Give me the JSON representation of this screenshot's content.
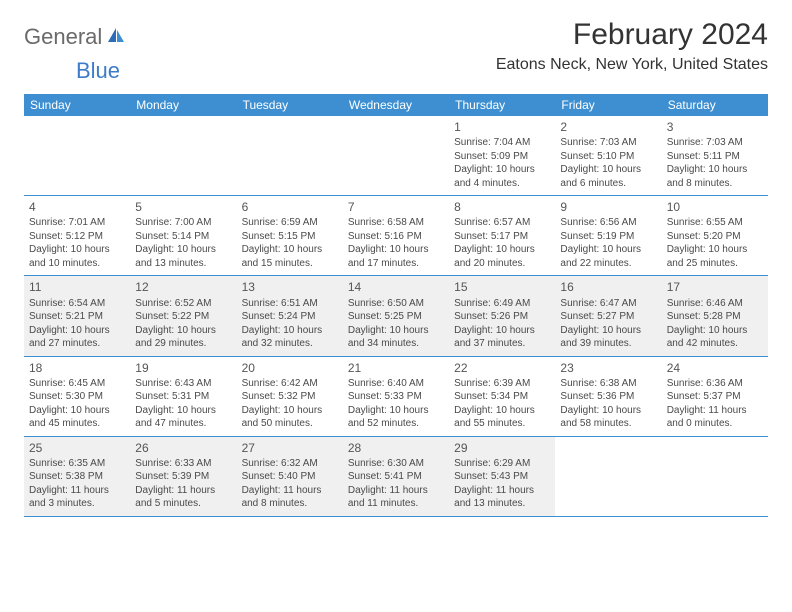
{
  "logo": {
    "text1": "General",
    "text2": "Blue"
  },
  "title": "February 2024",
  "location": "Eatons Neck, New York, United States",
  "colors": {
    "header_bg": "#3d8fd1",
    "header_text": "#ffffff",
    "border": "#3d8fd1",
    "shaded_bg": "#f0f0f0",
    "logo_gray": "#6a6a6a",
    "logo_blue": "#3d7cc9"
  },
  "dayNames": [
    "Sunday",
    "Monday",
    "Tuesday",
    "Wednesday",
    "Thursday",
    "Friday",
    "Saturday"
  ],
  "weeks": [
    [
      {
        "num": "",
        "lines": []
      },
      {
        "num": "",
        "lines": []
      },
      {
        "num": "",
        "lines": []
      },
      {
        "num": "",
        "lines": []
      },
      {
        "num": "1",
        "lines": [
          "Sunrise: 7:04 AM",
          "Sunset: 5:09 PM",
          "Daylight: 10 hours and 4 minutes."
        ]
      },
      {
        "num": "2",
        "lines": [
          "Sunrise: 7:03 AM",
          "Sunset: 5:10 PM",
          "Daylight: 10 hours and 6 minutes."
        ]
      },
      {
        "num": "3",
        "lines": [
          "Sunrise: 7:03 AM",
          "Sunset: 5:11 PM",
          "Daylight: 10 hours and 8 minutes."
        ]
      }
    ],
    [
      {
        "num": "4",
        "lines": [
          "Sunrise: 7:01 AM",
          "Sunset: 5:12 PM",
          "Daylight: 10 hours and 10 minutes."
        ]
      },
      {
        "num": "5",
        "lines": [
          "Sunrise: 7:00 AM",
          "Sunset: 5:14 PM",
          "Daylight: 10 hours and 13 minutes."
        ]
      },
      {
        "num": "6",
        "lines": [
          "Sunrise: 6:59 AM",
          "Sunset: 5:15 PM",
          "Daylight: 10 hours and 15 minutes."
        ]
      },
      {
        "num": "7",
        "lines": [
          "Sunrise: 6:58 AM",
          "Sunset: 5:16 PM",
          "Daylight: 10 hours and 17 minutes."
        ]
      },
      {
        "num": "8",
        "lines": [
          "Sunrise: 6:57 AM",
          "Sunset: 5:17 PM",
          "Daylight: 10 hours and 20 minutes."
        ]
      },
      {
        "num": "9",
        "lines": [
          "Sunrise: 6:56 AM",
          "Sunset: 5:19 PM",
          "Daylight: 10 hours and 22 minutes."
        ]
      },
      {
        "num": "10",
        "lines": [
          "Sunrise: 6:55 AM",
          "Sunset: 5:20 PM",
          "Daylight: 10 hours and 25 minutes."
        ]
      }
    ],
    [
      {
        "num": "11",
        "lines": [
          "Sunrise: 6:54 AM",
          "Sunset: 5:21 PM",
          "Daylight: 10 hours and 27 minutes."
        ]
      },
      {
        "num": "12",
        "lines": [
          "Sunrise: 6:52 AM",
          "Sunset: 5:22 PM",
          "Daylight: 10 hours and 29 minutes."
        ]
      },
      {
        "num": "13",
        "lines": [
          "Sunrise: 6:51 AM",
          "Sunset: 5:24 PM",
          "Daylight: 10 hours and 32 minutes."
        ]
      },
      {
        "num": "14",
        "lines": [
          "Sunrise: 6:50 AM",
          "Sunset: 5:25 PM",
          "Daylight: 10 hours and 34 minutes."
        ]
      },
      {
        "num": "15",
        "lines": [
          "Sunrise: 6:49 AM",
          "Sunset: 5:26 PM",
          "Daylight: 10 hours and 37 minutes."
        ]
      },
      {
        "num": "16",
        "lines": [
          "Sunrise: 6:47 AM",
          "Sunset: 5:27 PM",
          "Daylight: 10 hours and 39 minutes."
        ]
      },
      {
        "num": "17",
        "lines": [
          "Sunrise: 6:46 AM",
          "Sunset: 5:28 PM",
          "Daylight: 10 hours and 42 minutes."
        ]
      }
    ],
    [
      {
        "num": "18",
        "lines": [
          "Sunrise: 6:45 AM",
          "Sunset: 5:30 PM",
          "Daylight: 10 hours and 45 minutes."
        ]
      },
      {
        "num": "19",
        "lines": [
          "Sunrise: 6:43 AM",
          "Sunset: 5:31 PM",
          "Daylight: 10 hours and 47 minutes."
        ]
      },
      {
        "num": "20",
        "lines": [
          "Sunrise: 6:42 AM",
          "Sunset: 5:32 PM",
          "Daylight: 10 hours and 50 minutes."
        ]
      },
      {
        "num": "21",
        "lines": [
          "Sunrise: 6:40 AM",
          "Sunset: 5:33 PM",
          "Daylight: 10 hours and 52 minutes."
        ]
      },
      {
        "num": "22",
        "lines": [
          "Sunrise: 6:39 AM",
          "Sunset: 5:34 PM",
          "Daylight: 10 hours and 55 minutes."
        ]
      },
      {
        "num": "23",
        "lines": [
          "Sunrise: 6:38 AM",
          "Sunset: 5:36 PM",
          "Daylight: 10 hours and 58 minutes."
        ]
      },
      {
        "num": "24",
        "lines": [
          "Sunrise: 6:36 AM",
          "Sunset: 5:37 PM",
          "Daylight: 11 hours and 0 minutes."
        ]
      }
    ],
    [
      {
        "num": "25",
        "lines": [
          "Sunrise: 6:35 AM",
          "Sunset: 5:38 PM",
          "Daylight: 11 hours and 3 minutes."
        ]
      },
      {
        "num": "26",
        "lines": [
          "Sunrise: 6:33 AM",
          "Sunset: 5:39 PM",
          "Daylight: 11 hours and 5 minutes."
        ]
      },
      {
        "num": "27",
        "lines": [
          "Sunrise: 6:32 AM",
          "Sunset: 5:40 PM",
          "Daylight: 11 hours and 8 minutes."
        ]
      },
      {
        "num": "28",
        "lines": [
          "Sunrise: 6:30 AM",
          "Sunset: 5:41 PM",
          "Daylight: 11 hours and 11 minutes."
        ]
      },
      {
        "num": "29",
        "lines": [
          "Sunrise: 6:29 AM",
          "Sunset: 5:43 PM",
          "Daylight: 11 hours and 13 minutes."
        ]
      },
      {
        "num": "",
        "lines": []
      },
      {
        "num": "",
        "lines": []
      }
    ]
  ],
  "shadedWeeks": [
    2,
    4
  ]
}
